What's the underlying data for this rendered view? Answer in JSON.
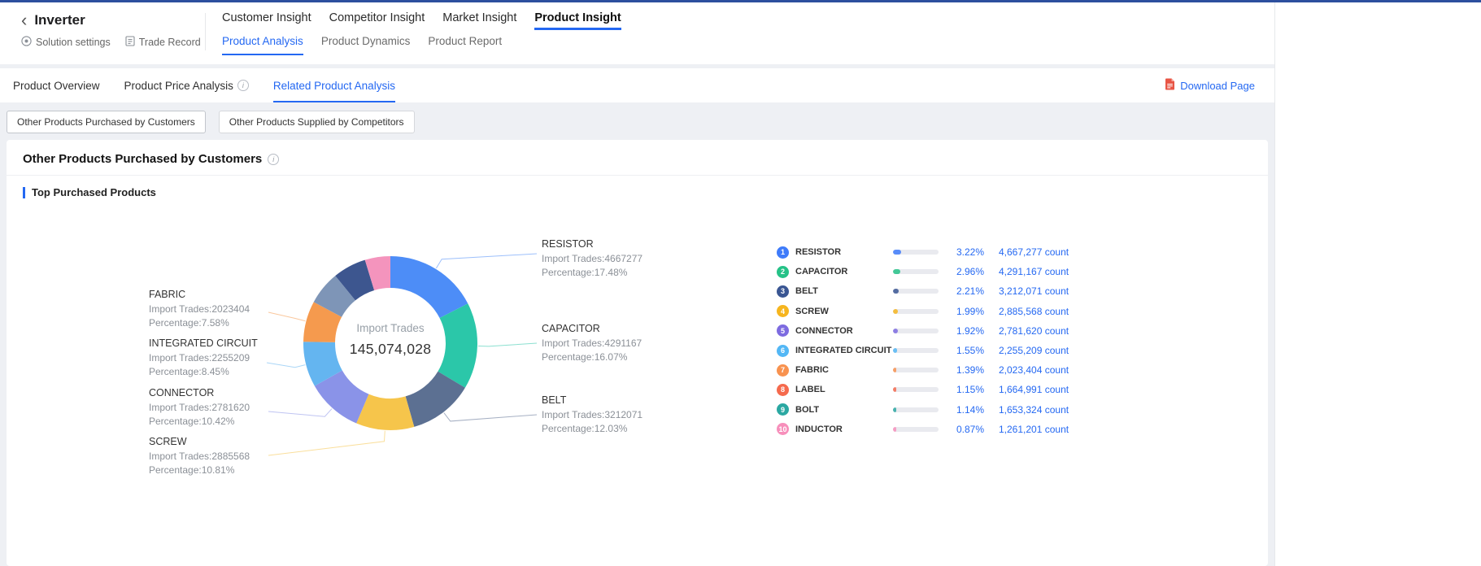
{
  "header": {
    "back_icon": "‹",
    "title": "Inverter",
    "links": [
      {
        "label": "Solution settings",
        "icon": "target-icon"
      },
      {
        "label": "Trade Record",
        "icon": "document-icon"
      }
    ],
    "main_tabs": [
      {
        "label": "Customer Insight",
        "active": false
      },
      {
        "label": "Competitor Insight",
        "active": false
      },
      {
        "label": "Market Insight",
        "active": false
      },
      {
        "label": "Product Insight",
        "active": true
      }
    ],
    "sub_tabs": [
      {
        "label": "Product Analysis",
        "active": true
      },
      {
        "label": "Product Dynamics",
        "active": false
      },
      {
        "label": "Product Report",
        "active": false
      }
    ]
  },
  "toolbar": {
    "tabs": [
      {
        "label": "Product Overview",
        "active": false,
        "info": false
      },
      {
        "label": "Product Price Analysis",
        "active": false,
        "info": true
      },
      {
        "label": "Related Product Analysis",
        "active": true,
        "info": false
      }
    ],
    "download_label": "Download Page",
    "download_icon": "pdf-file-icon"
  },
  "chips": [
    {
      "label": "Other Products Purchased by Customers",
      "active": true
    },
    {
      "label": "Other Products Supplied by Competitors",
      "active": false
    }
  ],
  "panel": {
    "title": "Other Products Purchased by Customers",
    "section_title": "Top Purchased Products"
  },
  "chart_data": {
    "type": "pie",
    "title": "Top Purchased Products",
    "center": {
      "label": "Import Trades",
      "value": "145,074,028"
    },
    "legend_position": "right",
    "items": [
      {
        "rank": 1,
        "name": "RESISTOR",
        "import_trades": 4667277,
        "share_pct": 17.48,
        "total_pct": "3.22%",
        "count": "4,667,277 count",
        "color": "#4D8DF7",
        "badge": "#3E7BFA"
      },
      {
        "rank": 2,
        "name": "CAPACITOR",
        "import_trades": 4291167,
        "share_pct": 16.07,
        "total_pct": "2.96%",
        "count": "4,291,167 count",
        "color": "#2BC7A9",
        "badge": "#25C287"
      },
      {
        "rank": 3,
        "name": "BELT",
        "import_trades": 3212071,
        "share_pct": 12.03,
        "total_pct": "2.21%",
        "count": "3,212,071 count",
        "color": "#5C7092",
        "badge": "#3A5693"
      },
      {
        "rank": 4,
        "name": "SCREW",
        "import_trades": 2885568,
        "share_pct": 10.81,
        "total_pct": "1.99%",
        "count": "2,885,568 count",
        "color": "#F6C54B",
        "badge": "#F6B51E"
      },
      {
        "rank": 5,
        "name": "CONNECTOR",
        "import_trades": 2781620,
        "share_pct": 10.42,
        "total_pct": "1.92%",
        "count": "2,781,620 count",
        "color": "#8A93E8",
        "badge": "#7D6BE0"
      },
      {
        "rank": 6,
        "name": "INTEGRATED CIRCUIT",
        "import_trades": 2255209,
        "share_pct": 8.45,
        "total_pct": "1.55%",
        "count": "2,255,209 count",
        "color": "#64B5F0",
        "badge": "#53B7F5"
      },
      {
        "rank": 7,
        "name": "FABRIC",
        "import_trades": 2023404,
        "share_pct": 7.58,
        "total_pct": "1.39%",
        "count": "2,023,404 count",
        "color": "#F59A4E",
        "badge": "#F8924F"
      },
      {
        "rank": 8,
        "name": "LABEL",
        "import_trades": 1664991,
        "share_pct": 6.24,
        "total_pct": "1.15%",
        "count": "1,664,991 count",
        "color": "#7E95B7",
        "badge": "#F56A4D"
      },
      {
        "rank": 9,
        "name": "BOLT",
        "import_trades": 1653324,
        "share_pct": 6.19,
        "total_pct": "1.14%",
        "count": "1,653,324 count",
        "color": "#3D568F",
        "badge": "#2BA8A2"
      },
      {
        "rank": 10,
        "name": "INDUCTOR",
        "import_trades": 1261201,
        "share_pct": 4.72,
        "total_pct": "0.87%",
        "count": "1,261,201 count",
        "color": "#F494BD",
        "badge": "#F78FBB"
      }
    ],
    "callout_label_prefixes": {
      "trades": "Import Trades:",
      "percentage": "Percentage:"
    }
  }
}
